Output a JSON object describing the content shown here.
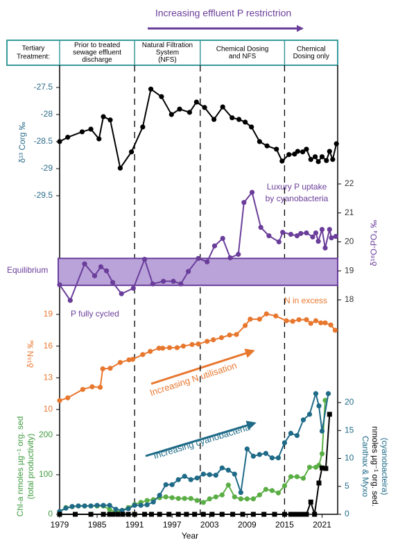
{
  "header": {
    "title": "Increasing effluent P restrictrion"
  },
  "treatment": {
    "label": [
      "Tertiary",
      "Treatment:"
    ],
    "periods": [
      {
        "lines": [
          "Prior to treated",
          "sewage effluent",
          "discharge"
        ],
        "start": 1979,
        "end": 1991
      },
      {
        "lines": [
          "Natural Filtration",
          "System",
          "(NFS)"
        ],
        "start": 1991,
        "end": 2001.5
      },
      {
        "lines": [
          "Chemical Dosing",
          "and NFS"
        ],
        "start": 2001.5,
        "end": 2015
      },
      {
        "lines": [
          "Chemical",
          "Dosing only"
        ],
        "start": 2015,
        "end": 2023.5
      }
    ],
    "dividers": [
      1991,
      2001.5,
      2015
    ]
  },
  "chart_data": [
    {
      "type": "line",
      "ylabel": "δ¹³ Corg ‰",
      "yaxis_side": "left",
      "ytick_color": "#2a6b8a",
      "xlim": [
        1979,
        2023.5
      ],
      "ylim": [
        -29.5,
        -27.5
      ],
      "yticks": [
        -27.5,
        -28,
        -28.5,
        -29,
        -29.5
      ],
      "series": [
        {
          "color": "#000000",
          "marker": "circle",
          "x": [
            1979,
            1980.3,
            1982.6,
            1984,
            1985.3,
            1986,
            1987.1,
            1988.7,
            1990.5,
            1992.3,
            1993.6,
            1995.3,
            1996.9,
            1998.2,
            1999.8,
            2000.9,
            2002.2,
            2003.7,
            2005.1,
            2006.6,
            2007.7,
            2008.7,
            2009.7,
            2011,
            2012.2,
            2013.7,
            2014.6,
            2015.7,
            2016.6,
            2017.1,
            2017.9,
            2018.5,
            2019.2,
            2019.9,
            2020.4,
            2021,
            2021.7,
            2022.2,
            2022.7,
            2023.3
          ],
          "values": [
            -28.5,
            -28.42,
            -28.32,
            -28.27,
            -28.45,
            -28.04,
            -28.1,
            -28.99,
            -28.69,
            -28.23,
            -27.53,
            -27.67,
            -28.0,
            -27.9,
            -27.96,
            -27.77,
            -27.87,
            -28.09,
            -27.86,
            -28.06,
            -28.09,
            -28.14,
            -28.23,
            -28.5,
            -28.58,
            -28.64,
            -28.86,
            -28.74,
            -28.73,
            -28.68,
            -28.69,
            -28.64,
            -28.83,
            -28.78,
            -28.87,
            -28.78,
            -28.85,
            -28.68,
            -28.83,
            -28.54
          ]
        }
      ]
    },
    {
      "type": "line",
      "ylabel": "δ¹⁸O-PO₄ ‰",
      "yaxis_side": "right",
      "ytick_color": "#333333",
      "xlim": [
        1979,
        2023.5
      ],
      "ylim": [
        18,
        22
      ],
      "yticks": [
        18,
        19,
        20,
        21,
        22
      ],
      "band": [
        18.5,
        19.43
      ],
      "band_color": "#b9a3d9",
      "annotations": {
        "band_label": "Equilibrium",
        "low_label": "P fully cycled",
        "high_label": [
          "Luxury P uptake",
          "by cyanobacteria"
        ]
      },
      "series": [
        {
          "color": "#6a3d9a",
          "marker": "circle",
          "x": [
            1979,
            1980.7,
            1983,
            1984.6,
            1985.6,
            1986.5,
            1987.5,
            1988.9,
            1990.8,
            1992.6,
            1993.9,
            1995.6,
            1997.2,
            1998.4,
            1999.6,
            2001.2,
            2002.6,
            2003.8,
            2005.1,
            2006.3,
            2007.6,
            2008.5,
            2009.8,
            2011.2,
            2012.5,
            2014.1,
            2014.7,
            2016,
            2017,
            2017.6,
            2018.5,
            2019.5,
            2020,
            2020.4,
            2021,
            2021.5,
            2022.2,
            2022.5,
            2023.2
          ],
          "values": [
            18.52,
            17.98,
            19.24,
            18.83,
            19.14,
            19.0,
            18.6,
            18.21,
            18.4,
            19.4,
            18.55,
            18.64,
            18.64,
            18.55,
            18.98,
            19.43,
            19.31,
            19.86,
            20.12,
            19.45,
            19.57,
            21.36,
            21.71,
            20.5,
            20.21,
            20.0,
            20.33,
            20.26,
            20.21,
            20.29,
            20.31,
            20.17,
            20.31,
            20.02,
            20.43,
            19.79,
            20.43,
            20.14,
            20.19
          ]
        }
      ]
    },
    {
      "type": "line",
      "ylabel": "δ¹⁵N ‰",
      "yaxis_side": "left",
      "ytick_color": "#e8772e",
      "xlim": [
        1979,
        2023.5
      ],
      "ylim": [
        10,
        19
      ],
      "yticks": [
        10,
        13,
        16,
        19
      ],
      "annotations": {
        "excess_label": "N in excess",
        "trend_label": "Increasing N utilisation"
      },
      "series": [
        {
          "color": "#e8772e",
          "marker": "circle",
          "x": [
            1979,
            1980.3,
            1982.7,
            1984.2,
            1985.5,
            1985.9,
            1987.1,
            1988.7,
            1990.1,
            1990.7,
            1992.3,
            1993.5,
            1994.9,
            1995.5,
            1996.6,
            1997.8,
            1998.8,
            2000.2,
            2001.2,
            2002.6,
            2003.6,
            2004.9,
            2006.2,
            2007.3,
            2008.7,
            2009.5,
            2011,
            2012.1,
            2013.6,
            2015.3,
            2016.3,
            2017.3,
            2018.5,
            2019.2,
            2020,
            2020.8,
            2021.5,
            2022.4,
            2023.1
          ],
          "values": [
            10.85,
            11.1,
            11.9,
            12.15,
            12.1,
            13.85,
            13.9,
            14.45,
            14.7,
            14.75,
            15.2,
            15.5,
            15.8,
            15.8,
            15.85,
            15.85,
            16.0,
            16.15,
            16.2,
            16.45,
            16.6,
            16.8,
            17.05,
            17.1,
            17.95,
            18.55,
            18.55,
            19.05,
            18.85,
            18.4,
            18.35,
            18.5,
            18.5,
            18.15,
            18.4,
            18.2,
            18.2,
            18.0,
            17.5
          ]
        }
      ]
    },
    {
      "type": "line",
      "ylabel": [
        "Chl-a nmoles µg⁻¹ org. sed",
        "(total productivity)"
      ],
      "y2label": [
        "Canthax  & Myxo",
        "nmoles µg⁻¹ org. sed.",
        "(cyanobacteira)"
      ],
      "yaxis_side": "left",
      "ytick_color": "#3f9a3f",
      "y2tick_color": "#1e6a87",
      "xlabel": "Year",
      "xlim": [
        1979,
        2023.5
      ],
      "xticks": [
        1979,
        1985,
        1991,
        1997,
        2003,
        2009,
        2015,
        2021
      ],
      "ylim": [
        0,
        200
      ],
      "yticks": [
        0,
        100,
        200
      ],
      "y2lim": [
        0,
        20
      ],
      "y2ticks": [
        0,
        5,
        10,
        15,
        20
      ],
      "annotations": {
        "trend_label": "Increasing cyanobacteria"
      },
      "series": [
        {
          "color": "#5aae45",
          "marker": "circle",
          "axis": "y",
          "x": [
            1979,
            1980,
            1981,
            1982,
            1983,
            1984,
            1985,
            1986,
            1987,
            1988,
            1989,
            1990,
            1991,
            1992,
            1993,
            1994,
            1995,
            1996,
            1997,
            1998,
            1999,
            2000,
            2001,
            2002,
            2003,
            2004,
            2005,
            2006,
            2007,
            2008,
            2009,
            2010,
            2011,
            2012,
            2013,
            2014,
            2015,
            2016,
            2017,
            2018,
            2019,
            2020,
            2020.5,
            2021,
            2021.5
          ],
          "values": [
            7,
            17,
            19,
            21,
            21,
            21,
            21,
            21,
            12,
            5,
            10,
            17,
            25,
            30,
            35,
            37,
            42,
            44,
            42,
            40,
            40,
            40,
            35,
            30,
            39,
            44,
            49,
            74,
            44,
            39,
            39,
            39,
            49,
            63,
            60,
            54,
            72,
            95,
            95,
            91,
            119,
            119,
            124,
            153,
            288
          ]
        },
        {
          "color": "#1e6a87",
          "marker": "circle",
          "axis": "y2",
          "x": [
            1979,
            1980,
            1981,
            1982,
            1983,
            1984,
            1985,
            1986,
            1987,
            1988,
            1989,
            1990,
            1991,
            1992,
            1993,
            1994,
            1995,
            1996,
            1997,
            1998,
            1999,
            2000,
            2001,
            2002,
            2003,
            2004,
            2005,
            2006,
            2007,
            2008,
            2009,
            2010,
            2011,
            2012,
            2013,
            2014,
            2015,
            2016,
            2017,
            2018,
            2019,
            2020,
            2020.5,
            2021,
            2022
          ],
          "values": [
            0.5,
            1.1,
            1.4,
            1.5,
            1.5,
            1.5,
            1.6,
            1.6,
            1.6,
            0.9,
            0.7,
            1,
            1.6,
            1.6,
            1.7,
            2.2,
            3.4,
            5.3,
            5.3,
            6.2,
            6.8,
            6.2,
            6.5,
            7.2,
            7.1,
            7,
            8.3,
            7.9,
            7.2,
            3.9,
            11.7,
            10.4,
            10.7,
            10.9,
            10.1,
            10.1,
            12.8,
            14.5,
            14.1,
            16.9,
            17.9,
            21.6,
            19.4,
            14.9,
            21.6
          ]
        },
        {
          "color": "#000000",
          "marker": "square",
          "axis": "y2",
          "x": [
            1979,
            1981.5,
            1984,
            1986,
            1987,
            1987.5,
            1988.3,
            1989.1,
            1990,
            1991,
            1992.6,
            1993.7,
            1995,
            1996.5,
            1998,
            1999.3,
            2000.6,
            2002,
            2003.4,
            2005,
            2006.7,
            2008.3,
            2010,
            2011.7,
            2013.4,
            2015,
            2016,
            2016.5,
            2017,
            2017.5,
            2018,
            2018.5,
            2019.2,
            2019.8,
            2020.5,
            2021,
            2021.6,
            2022.2
          ],
          "values": [
            0,
            0,
            0,
            0,
            0,
            0,
            0,
            0,
            0,
            0,
            0,
            0,
            0,
            0,
            0,
            0,
            0,
            0,
            0,
            0,
            0,
            0,
            0,
            0,
            0,
            0,
            0,
            0,
            0,
            0,
            0,
            0,
            2.2,
            0,
            5.6,
            8.3,
            8.2,
            17.9
          ]
        }
      ]
    }
  ]
}
